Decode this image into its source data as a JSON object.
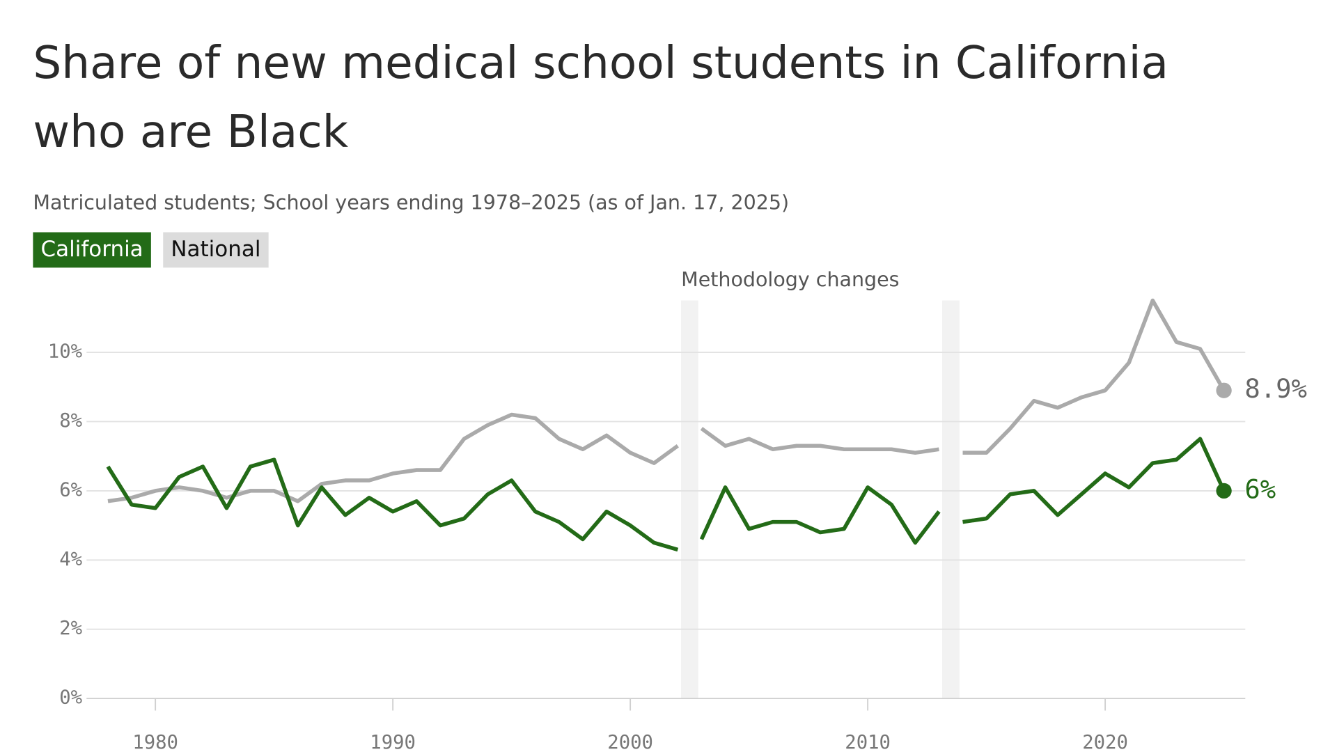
{
  "chart_data": {
    "type": "line",
    "title": [
      "Share of new medical school students in California",
      "who are Black"
    ],
    "subtitle": "Matriculated students; School years ending 1978–2025 (as of Jan. 17, 2025)",
    "annotation": "Methodology changes",
    "methodology_changes": [
      2002.5,
      2013.5
    ],
    "x": [
      1978,
      1979,
      1980,
      1981,
      1982,
      1983,
      1984,
      1985,
      1986,
      1987,
      1988,
      1989,
      1990,
      1991,
      1992,
      1993,
      1994,
      1995,
      1996,
      1997,
      1998,
      1999,
      2000,
      2001,
      2002,
      2002.5,
      2003,
      2004,
      2005,
      2006,
      2007,
      2008,
      2009,
      2010,
      2011,
      2012,
      2013,
      2013.5,
      2014,
      2015,
      2016,
      2017,
      2018,
      2019,
      2020,
      2021,
      2022,
      2023,
      2024,
      2025
    ],
    "series": [
      {
        "name": "California",
        "color": "#236b17",
        "legend_text_color": "#ffffff",
        "legend_color": "#236b17",
        "end_label": "6%",
        "values": [
          6.7,
          5.6,
          5.5,
          6.4,
          6.7,
          5.5,
          6.7,
          6.9,
          5.0,
          6.1,
          5.3,
          5.8,
          5.4,
          5.7,
          5.0,
          5.2,
          5.9,
          6.3,
          5.4,
          5.1,
          4.6,
          5.4,
          5.0,
          4.5,
          4.3,
          null,
          4.6,
          6.1,
          4.9,
          5.1,
          5.1,
          4.8,
          4.9,
          6.1,
          5.6,
          4.5,
          5.4,
          null,
          5.1,
          5.2,
          5.9,
          6.0,
          5.3,
          5.9,
          6.5,
          6.1,
          6.8,
          6.9,
          7.5,
          6.0
        ]
      },
      {
        "name": "National",
        "color": "#aaaaaa",
        "legend_text_color": "#111111",
        "legend_color": "#dcdcdc",
        "end_label": "8.9%",
        "values": [
          5.7,
          5.8,
          6.0,
          6.1,
          6.0,
          5.8,
          6.0,
          6.0,
          5.7,
          6.2,
          6.3,
          6.3,
          6.5,
          6.6,
          6.6,
          7.5,
          7.9,
          8.2,
          8.1,
          7.5,
          7.2,
          7.6,
          7.1,
          6.8,
          7.3,
          null,
          7.8,
          7.3,
          7.5,
          7.2,
          7.3,
          7.3,
          7.2,
          7.2,
          7.2,
          7.1,
          7.2,
          null,
          7.1,
          7.1,
          7.8,
          8.6,
          8.4,
          8.7,
          8.9,
          9.7,
          11.5,
          10.3,
          10.1,
          8.9
        ]
      }
    ],
    "xlim": [
      1977.1,
      2025.9
    ],
    "xticks": [
      1980,
      1990,
      2000,
      2010,
      2020
    ],
    "ylim": [
      0,
      11.5
    ],
    "yticks": [
      {
        "value": 0,
        "label": "0%"
      },
      {
        "value": 2,
        "label": "2%"
      },
      {
        "value": 4,
        "label": "4%"
      },
      {
        "value": 6,
        "label": "6%"
      },
      {
        "value": 8,
        "label": "8%"
      },
      {
        "value": 10,
        "label": "10%"
      }
    ],
    "grid": true
  }
}
